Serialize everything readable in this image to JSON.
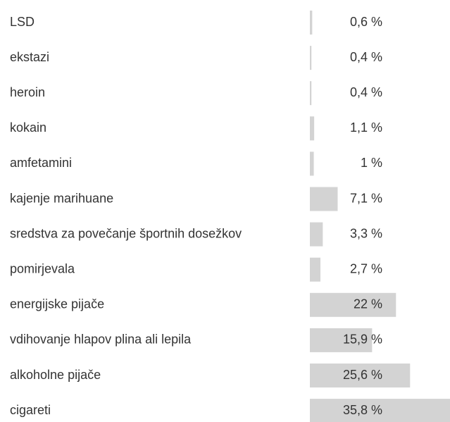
{
  "chart_data": {
    "type": "bar",
    "orientation": "horizontal",
    "categories": [
      "LSD",
      "ekstazi",
      "heroin",
      "kokain",
      "amfetamini",
      "kajenje marihuane",
      "sredstva za povečanje športnih dosežkov",
      "pomirjevala",
      "energijske pijače",
      "vdihovanje hlapov plina ali lepila",
      "alkoholne pijače",
      "cigareti"
    ],
    "values": [
      0.6,
      0.4,
      0.4,
      1.1,
      1,
      7.1,
      3.3,
      2.7,
      22,
      15.9,
      25.6,
      35.8
    ],
    "value_labels": [
      "0,6 %",
      "0,4 %",
      "0,4 %",
      "1,1 %",
      "1 %",
      "7,1 %",
      "3,3 %",
      "2,7 %",
      "22 %",
      "15,9 %",
      "25,6 %",
      "35,8 %"
    ],
    "color": "#d3d3d3"
  }
}
